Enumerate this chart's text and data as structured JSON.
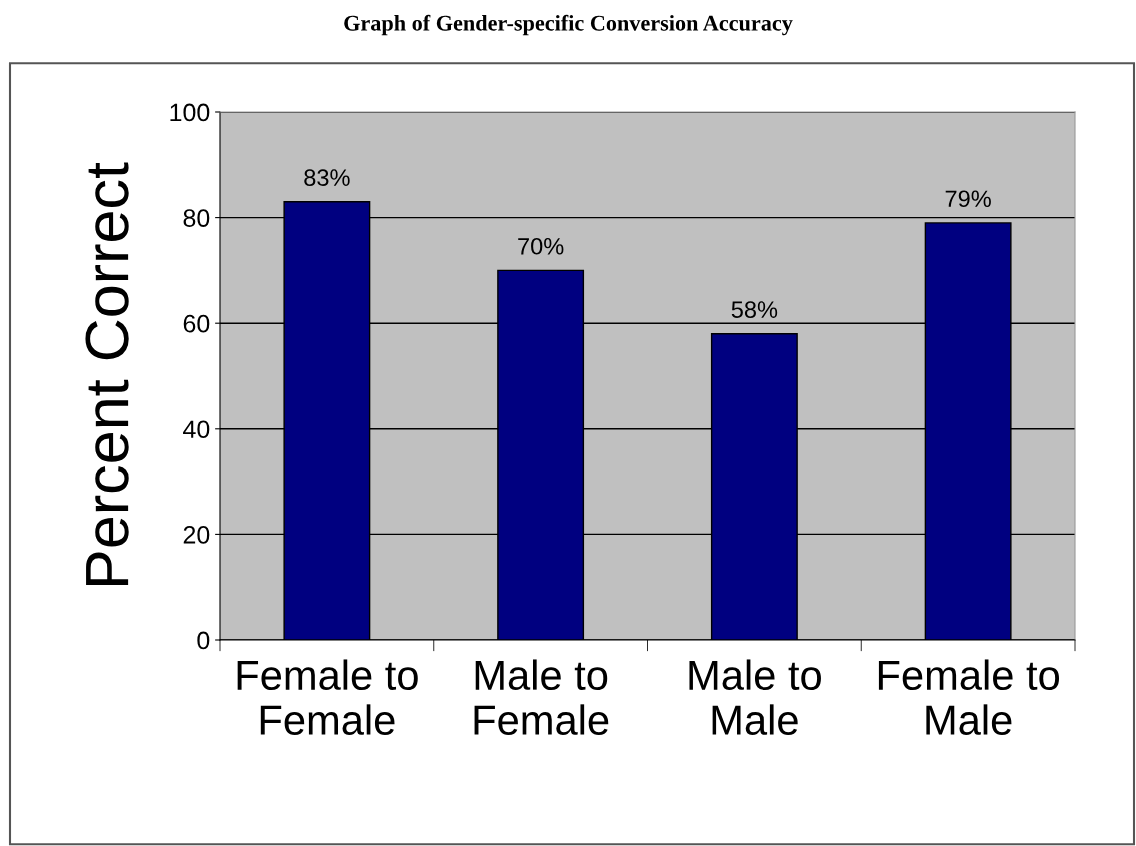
{
  "chart_data": {
    "type": "bar",
    "title": "Graph of Gender-specific Conversion Accuracy",
    "ylabel": "Percent Correct",
    "categories": [
      "Female to\nFemale",
      "Male to\nFemale",
      "Male to\nMale",
      "Female to\nMale"
    ],
    "values": [
      83,
      70,
      58,
      79
    ],
    "value_labels": [
      "83%",
      "70%",
      "58%",
      "79%"
    ],
    "color": "#000080",
    "ylim": [
      0,
      100
    ],
    "yticks": [
      0,
      20,
      40,
      60,
      80,
      100
    ],
    "grid": "y"
  }
}
